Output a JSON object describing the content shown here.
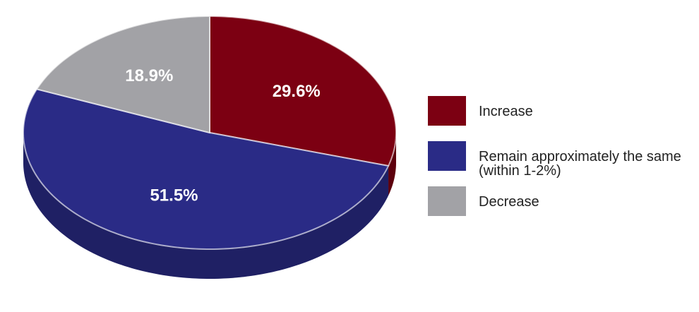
{
  "chart_data": {
    "type": "pie",
    "categories": [
      "Increase",
      "Remain approximately the same (within 1-2%)",
      "Decrease"
    ],
    "values": [
      29.6,
      51.5,
      18.9
    ],
    "value_labels": [
      "29.6%",
      "51.5%",
      "18.9%"
    ],
    "colors": [
      "#7c0012",
      "#2a2b86",
      "#a2a2a6"
    ]
  }
}
